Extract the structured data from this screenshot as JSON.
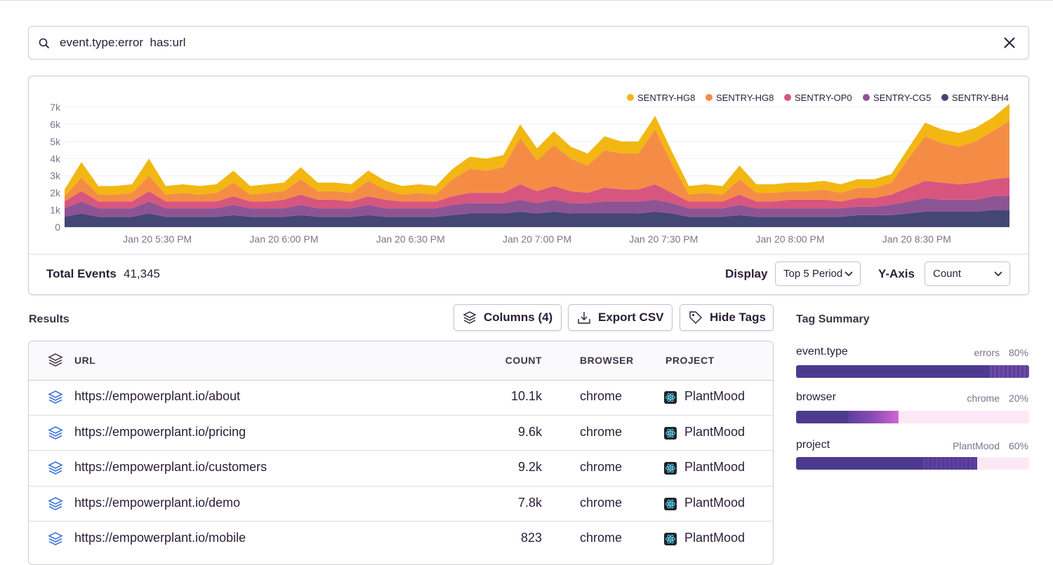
{
  "search": {
    "query": "event.type:error  has:url"
  },
  "chart_data": {
    "type": "area",
    "stacked": true,
    "x": [
      "Jan 20 5:08 PM",
      "Jan 20 5:12 PM",
      "Jan 20 5:16 PM",
      "Jan 20 5:20 PM",
      "Jan 20 5:24 PM",
      "Jan 20 5:28 PM",
      "Jan 20 5:32 PM",
      "Jan 20 5:36 PM",
      "Jan 20 5:40 PM",
      "Jan 20 5:44 PM",
      "Jan 20 5:48 PM",
      "Jan 20 5:52 PM",
      "Jan 20 5:56 PM",
      "Jan 20 6:00 PM",
      "Jan 20 6:04 PM",
      "Jan 20 6:08 PM",
      "Jan 20 6:12 PM",
      "Jan 20 6:16 PM",
      "Jan 20 6:20 PM",
      "Jan 20 6:24 PM",
      "Jan 20 6:28 PM",
      "Jan 20 6:32 PM",
      "Jan 20 6:36 PM",
      "Jan 20 6:40 PM",
      "Jan 20 6:44 PM",
      "Jan 20 6:48 PM",
      "Jan 20 6:52 PM",
      "Jan 20 6:56 PM",
      "Jan 20 7:00 PM",
      "Jan 20 7:04 PM",
      "Jan 20 7:08 PM",
      "Jan 20 7:12 PM",
      "Jan 20 7:16 PM",
      "Jan 20 7:20 PM",
      "Jan 20 7:24 PM",
      "Jan 20 7:28 PM",
      "Jan 20 7:32 PM",
      "Jan 20 7:36 PM",
      "Jan 20 7:40 PM",
      "Jan 20 7:44 PM",
      "Jan 20 7:48 PM",
      "Jan 20 7:52 PM",
      "Jan 20 7:56 PM",
      "Jan 20 8:00 PM",
      "Jan 20 8:04 PM",
      "Jan 20 8:08 PM",
      "Jan 20 8:12 PM",
      "Jan 20 8:16 PM",
      "Jan 20 8:20 PM",
      "Jan 20 8:24 PM",
      "Jan 20 8:28 PM",
      "Jan 20 8:32 PM",
      "Jan 20 8:36 PM",
      "Jan 20 8:40 PM",
      "Jan 20 8:44 PM",
      "Jan 20 8:48 PM",
      "Jan 20 8:52 PM"
    ],
    "xlim": [
      "Jan 20 5:08 PM",
      "Jan 20 8:52 PM"
    ],
    "xticks": [
      "Jan 20 5:30 PM",
      "Jan 20 6:00 PM",
      "Jan 20 6:30 PM",
      "Jan 20 7:00 PM",
      "Jan 20 7:30 PM",
      "Jan 20 8:00 PM",
      "Jan 20 8:30 PM"
    ],
    "ylim": [
      0,
      7000
    ],
    "yticks": [
      0,
      {
        "value": 1000,
        "label": "1k"
      },
      {
        "value": 2000,
        "label": "2k"
      },
      {
        "value": 3000,
        "label": "3k"
      },
      {
        "value": 4000,
        "label": "4k"
      },
      {
        "value": 5000,
        "label": "5k"
      },
      {
        "value": 6000,
        "label": "6k"
      },
      {
        "value": 7000,
        "label": "7k"
      }
    ],
    "grid": true,
    "legend": "top-right",
    "series": [
      {
        "name": "SENTRY-HG8",
        "color": "#f2b712",
        "values": [
          400,
          900,
          500,
          500,
          500,
          1000,
          500,
          500,
          500,
          500,
          700,
          500,
          500,
          500,
          700,
          500,
          500,
          500,
          600,
          500,
          500,
          500,
          500,
          600,
          700,
          700,
          700,
          800,
          700,
          800,
          700,
          700,
          800,
          700,
          700,
          800,
          700,
          500,
          500,
          500,
          800,
          500,
          500,
          500,
          500,
          500,
          500,
          500,
          500,
          500,
          600,
          800,
          800,
          800,
          800,
          800,
          1000
        ]
      },
      {
        "name": "SENTRY-HG8",
        "color": "#f58c46",
        "values": [
          300,
          800,
          400,
          400,
          500,
          900,
          400,
          500,
          400,
          500,
          800,
          400,
          500,
          500,
          900,
          500,
          500,
          500,
          900,
          600,
          400,
          500,
          400,
          1000,
          1400,
          1300,
          1500,
          2700,
          1800,
          2400,
          1900,
          1600,
          2200,
          2100,
          2100,
          3200,
          1700,
          400,
          500,
          400,
          900,
          500,
          500,
          500,
          500,
          600,
          500,
          600,
          600,
          700,
          1700,
          2600,
          2300,
          2200,
          2400,
          2800,
          3300
        ]
      },
      {
        "name": "SENTRY-OP0",
        "color": "#d6567f",
        "values": [
          400,
          600,
          400,
          400,
          400,
          600,
          400,
          400,
          400,
          400,
          500,
          400,
          400,
          500,
          600,
          500,
          500,
          400,
          500,
          500,
          400,
          400,
          400,
          500,
          600,
          600,
          600,
          900,
          700,
          800,
          700,
          600,
          800,
          700,
          700,
          900,
          600,
          400,
          400,
          400,
          600,
          400,
          400,
          500,
          500,
          500,
          400,
          500,
          500,
          600,
          800,
          1000,
          1000,
          900,
          1000,
          1000,
          1100
        ]
      },
      {
        "name": "SENTRY-CG5",
        "color": "#8d5494",
        "values": [
          500,
          700,
          500,
          500,
          500,
          700,
          500,
          500,
          500,
          500,
          600,
          500,
          500,
          500,
          600,
          500,
          500,
          500,
          600,
          500,
          500,
          500,
          500,
          600,
          600,
          600,
          600,
          700,
          600,
          700,
          600,
          600,
          700,
          700,
          700,
          700,
          600,
          500,
          500,
          500,
          600,
          500,
          500,
          500,
          500,
          500,
          500,
          500,
          500,
          600,
          700,
          800,
          700,
          700,
          700,
          800,
          800
        ]
      },
      {
        "name": "SENTRY-BH4",
        "color": "#444674",
        "values": [
          600,
          800,
          600,
          600,
          600,
          800,
          600,
          600,
          600,
          600,
          700,
          600,
          600,
          600,
          700,
          600,
          600,
          600,
          700,
          600,
          600,
          600,
          600,
          700,
          800,
          800,
          800,
          900,
          800,
          900,
          800,
          800,
          800,
          800,
          800,
          900,
          800,
          600,
          600,
          600,
          700,
          600,
          600,
          600,
          600,
          600,
          600,
          700,
          700,
          700,
          800,
          900,
          900,
          900,
          900,
          1000,
          1000
        ]
      }
    ]
  },
  "summary": {
    "total_label": "Total Events",
    "total": "41,345",
    "display_label": "Display",
    "display_value": "Top 5 Period",
    "yaxis_label": "Y-Axis",
    "yaxis_value": "Count"
  },
  "results": {
    "title": "Results",
    "buttons": [
      "Columns (4)",
      "Export CSV",
      "Hide Tags"
    ],
    "columns": [
      "URL",
      "COUNT",
      "BROWSER",
      "PROJECT"
    ],
    "rows": [
      [
        "https://empowerplant.io/about",
        "10.1k",
        "chrome",
        "PlantMood"
      ],
      [
        "https://empowerplant.io/pricing",
        "9.6k",
        "chrome",
        "PlantMood"
      ],
      [
        "https://empowerplant.io/customers",
        "9.2k",
        "chrome",
        "PlantMood"
      ],
      [
        "https://empowerplant.io/demo",
        "7.8k",
        "chrome",
        "PlantMood"
      ],
      [
        "https://empowerplant.io/mobile",
        "823",
        "chrome",
        "PlantMood"
      ]
    ]
  },
  "tag_summary": {
    "title": "Tag Summary",
    "tags": [
      {
        "key": "event.type",
        "value": "errors",
        "percent": "80%"
      },
      {
        "key": "browser",
        "value": "chrome",
        "percent": "20%"
      },
      {
        "key": "project",
        "value": "PlantMood",
        "percent": "60%"
      }
    ]
  }
}
